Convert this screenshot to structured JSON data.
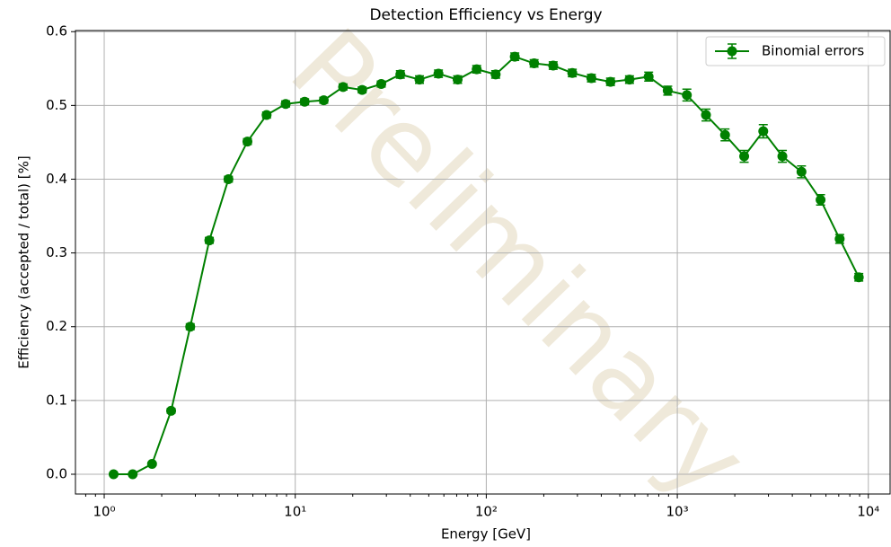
{
  "chart_data": {
    "type": "errorbar_line",
    "title": "Detection Efficiency vs Energy",
    "x_label": "Energy [GeV]",
    "y_label": "Efficiency (accepted / total) [%]",
    "watermark": "Preliminary",
    "log_x": true,
    "grid": true,
    "legend_position": "upper right",
    "xlim": [
      0.707,
      13000
    ],
    "ylim": [
      -0.0268,
      0.6015
    ],
    "xticks": [
      {
        "value": 1,
        "label": "10⁰"
      },
      {
        "value": 10,
        "label": "10¹"
      },
      {
        "value": 100,
        "label": "10²"
      },
      {
        "value": 1000,
        "label": "10³"
      },
      {
        "value": 10000,
        "label": "10⁴"
      }
    ],
    "yticks": [
      {
        "value": 0,
        "label": "0.0"
      },
      0.1,
      0.2,
      0.3,
      0.4,
      0.5,
      0.6
    ],
    "series": [
      {
        "name": "Binomial errors",
        "color": "#008000",
        "x": [
          1.12,
          1.41,
          1.78,
          2.24,
          2.82,
          3.55,
          4.47,
          5.62,
          7.08,
          8.91,
          11.2,
          14.1,
          17.8,
          22.4,
          28.2,
          35.5,
          44.7,
          56.2,
          70.8,
          89.1,
          112,
          141,
          178,
          224,
          282,
          355,
          447,
          562,
          708,
          891,
          1122,
          1413,
          1778,
          2239,
          2818,
          3548,
          4467,
          5623,
          7079,
          8913
        ],
        "values": [
          0.0,
          0.0,
          0.014,
          0.086,
          0.2,
          0.317,
          0.4,
          0.451,
          0.487,
          0.502,
          0.505,
          0.507,
          0.525,
          0.521,
          0.529,
          0.542,
          0.535,
          0.543,
          0.535,
          0.549,
          0.542,
          0.566,
          0.557,
          0.554,
          0.544,
          0.537,
          0.532,
          0.535,
          0.539,
          0.52,
          0.514,
          0.487,
          0.46,
          0.431,
          0.465,
          0.431,
          0.41,
          0.372,
          0.319,
          0.267
        ],
        "yerr": [
          0.001,
          0.001,
          0.002,
          0.003,
          0.004,
          0.004,
          0.004,
          0.004,
          0.004,
          0.004,
          0.004,
          0.004,
          0.004,
          0.004,
          0.004,
          0.005,
          0.005,
          0.005,
          0.005,
          0.005,
          0.005,
          0.005,
          0.005,
          0.005,
          0.005,
          0.005,
          0.005,
          0.005,
          0.006,
          0.006,
          0.008,
          0.008,
          0.008,
          0.008,
          0.009,
          0.008,
          0.008,
          0.007,
          0.006,
          0.005
        ]
      }
    ]
  }
}
